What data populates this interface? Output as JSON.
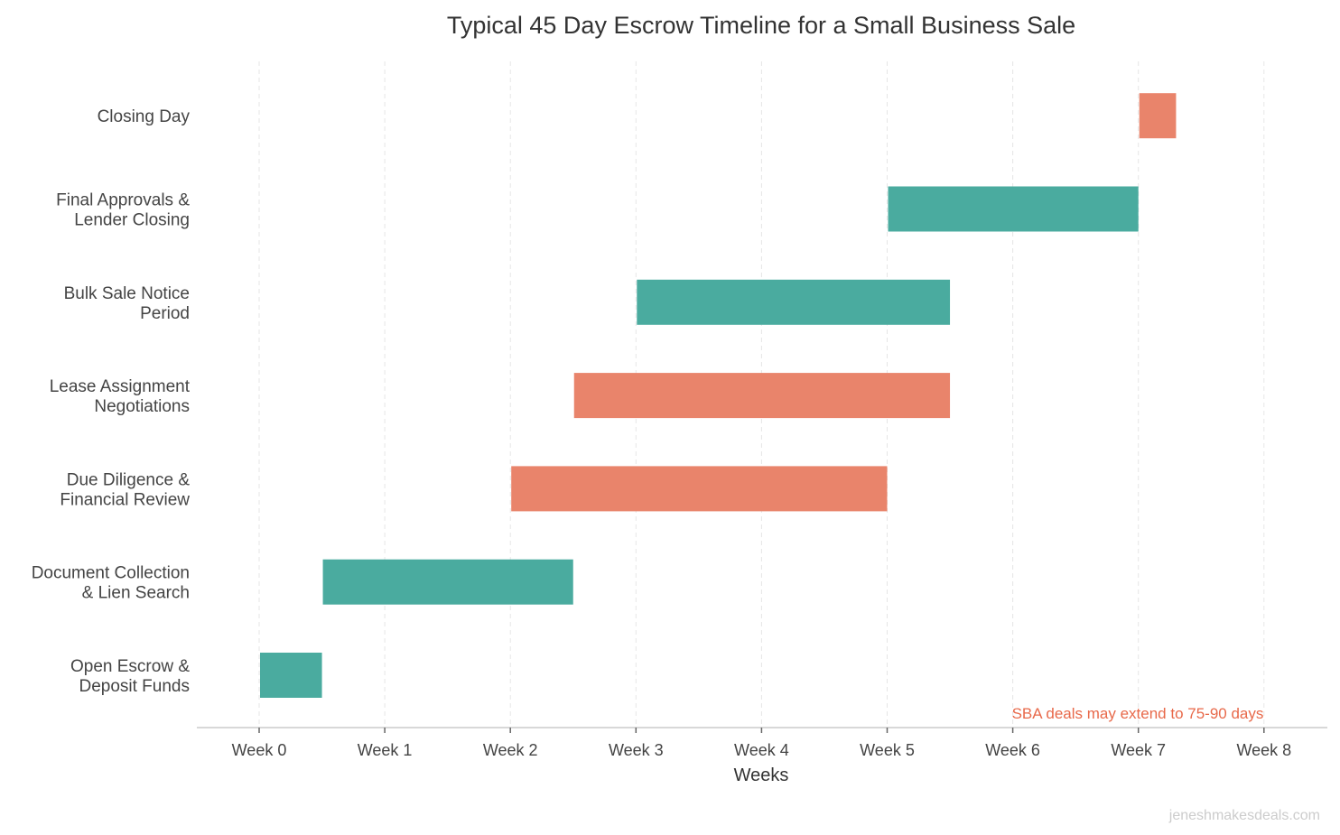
{
  "chart_data": {
    "type": "bar",
    "orientation": "horizontal-gantt",
    "title": "Typical 45 Day Escrow Timeline for a Small Business Sale",
    "xlabel": "Weeks",
    "ylabel": "",
    "xlim": [
      -0.5,
      8.5
    ],
    "x_ticks": [
      "Week 0",
      "Week 1",
      "Week 2",
      "Week 3",
      "Week 4",
      "Week 5",
      "Week 6",
      "Week 7",
      "Week 8"
    ],
    "grid": "vertical dashed",
    "tasks": [
      {
        "label": [
          "Open Escrow &",
          "Deposit Funds"
        ],
        "start": 0,
        "end": 0.5,
        "color": "#4aab9f"
      },
      {
        "label": [
          "Document Collection",
          "& Lien Search"
        ],
        "start": 0.5,
        "end": 2.5,
        "color": "#4aab9f"
      },
      {
        "label": [
          "Due Diligence &",
          "Financial Review"
        ],
        "start": 2,
        "end": 5,
        "color": "#e9846b"
      },
      {
        "label": [
          "Lease Assignment",
          "Negotiations"
        ],
        "start": 2.5,
        "end": 5.5,
        "color": "#e9846b"
      },
      {
        "label": [
          "Bulk Sale Notice",
          "Period"
        ],
        "start": 3,
        "end": 5.5,
        "color": "#4aab9f"
      },
      {
        "label": [
          "Final Approvals &",
          "Lender Closing"
        ],
        "start": 5,
        "end": 7,
        "color": "#4aab9f"
      },
      {
        "label": [
          "Closing Day"
        ],
        "start": 7,
        "end": 7.3,
        "color": "#e9846b"
      }
    ],
    "annotation": {
      "text": "SBA deals may extend to 75-90 days",
      "color": "#e8694a"
    },
    "watermark": "jeneshmakesdeals.com"
  }
}
